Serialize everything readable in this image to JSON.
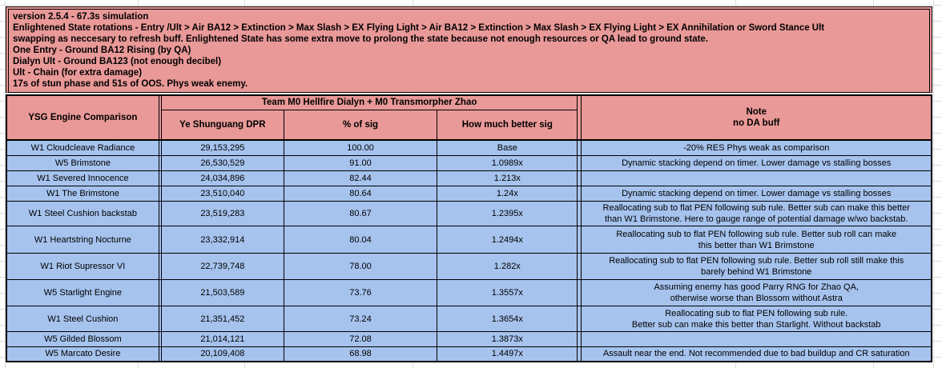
{
  "sheet": {
    "info_block": {
      "lines": [
        "version 2.5.4 - 67.3s simulation",
        "Enlightened State rotations - Entry /Ult > Air BA12 > Extinction > Max Slash > EX Flying Light > Air BA12 > Extinction > Max Slash > EX Flying Light > EX Annihilation  or Sword Stance Ult",
        "swapping as neccesary to refresh buff.  Enlightened State has some extra move to prolong the state because not enough resources or QA lead to ground state.",
        "One Entry - Ground BA12 Rising (by QA)",
        "Dialyn Ult - Ground BA123 (not enough decibel)",
        "Ult - Chain (for extra damage)",
        "17s of stun phase and 51s of OOS. Phys weak enemy."
      ]
    },
    "table": {
      "corner_header": "YSG Engine Comparison",
      "group_header": "Team M0 Hellfire Dialyn + M0 Transmorpher Zhao",
      "columns": [
        "Ye Shunguang DPR",
        "% of sig",
        "How much better sig"
      ],
      "note_header": "Note\nno DA buff",
      "rows": [
        {
          "name": "W1 Cloudcleave Radiance",
          "dpr": "29,153,295",
          "pct_of_sig": "100.00",
          "better": "Base",
          "note": "-20% RES Phys weak as comparison"
        },
        {
          "name": "W5 Brimstone",
          "dpr": "26,530,529",
          "pct_of_sig": "91.00",
          "better": "1.0989x",
          "note": "Dynamic stacking depend on timer. Lower damage vs stalling bosses"
        },
        {
          "name": "W1 Severed Innocence",
          "dpr": "24,034,896",
          "pct_of_sig": "82.44",
          "better": "1.213x",
          "note": ""
        },
        {
          "name": "W1 The Brimstone",
          "dpr": "23,510,040",
          "pct_of_sig": "80.64",
          "better": "1.24x",
          "note": "Dynamic stacking depend on timer. Lower damage vs stalling bosses"
        },
        {
          "name": "W1 Steel Cushion backstab",
          "dpr": "23,519,283",
          "pct_of_sig": "80.67",
          "better": "1.2395x",
          "note": "Reallocating sub to flat PEN following sub rule.  Better sub can make this better\nthan W1 Brimstone. Here to gauge range of potential damage w/wo backstab."
        },
        {
          "name": "W1 Heartstring Nocturne",
          "dpr": "23,332,914",
          "pct_of_sig": "80.04",
          "better": "1.2494x",
          "note": "Reallocating sub to flat PEN following sub rule. Better sub roll can make\nthis better than W1 Brimstone"
        },
        {
          "name": "W1 Riot Supressor VI",
          "dpr": "22,739,748",
          "pct_of_sig": "78.00",
          "better": "1.282x",
          "note": "Reallocating sub to flat PEN following sub rule. Better sub roll still make this\nbarely behind  W1 Brimstone"
        },
        {
          "name": "W5 Starlight Engine",
          "dpr": "21,503,589",
          "pct_of_sig": "73.76",
          "better": "1.3557x",
          "note": "Assuming enemy has good Parry RNG for Zhao QA,\notherwise worse than Blossom without Astra"
        },
        {
          "name": "W1 Steel Cushion",
          "dpr": "21,351,452",
          "pct_of_sig": "73.24",
          "better": "1.3654x",
          "note": "Reallocating sub to flat PEN following sub rule.\nBetter sub can make this better than Starlight. Without backstab"
        },
        {
          "name": "W5 Gilded Blossom",
          "dpr": "21,014,121",
          "pct_of_sig": "72.08",
          "better": "1.3873x",
          "note": ""
        },
        {
          "name": "W5 Marcato Desire",
          "dpr": "20,109,408",
          "pct_of_sig": "68.98",
          "better": "1.4497x",
          "note": "Assault near the end. Not recommended due to bad buildup and CR saturation"
        }
      ]
    },
    "colors": {
      "info_header_bg": "#e99998",
      "row_bg": "#a6c3ee",
      "border": "#000000",
      "gridline": "#dcdcdc",
      "text": "#000000"
    }
  }
}
